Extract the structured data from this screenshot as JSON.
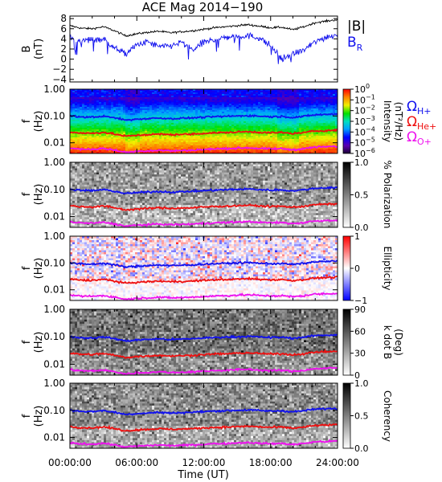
{
  "title": "ACE Mag 2014−190",
  "xlabel": "Time (UT)",
  "x_ticks": [
    "00:00:00",
    "06:00:00",
    "12:00:00",
    "18:00:00",
    "24:00:00"
  ],
  "colors": {
    "bmag": "#000000",
    "br": "#1010ee",
    "h_line": "#1010ee",
    "he_line": "#ee0f0f",
    "o_line": "#ee10ee"
  },
  "chart_data": [
    {
      "type": "line",
      "panel": "magnetic field",
      "ylabel": "B",
      "yunit": "(nT)",
      "ylim": [
        -4.5,
        8.5
      ],
      "y_ticks": [
        "8",
        "6",
        "4",
        "2",
        "0",
        "−2",
        "−4"
      ],
      "y_tick_values": [
        8,
        6,
        4,
        2,
        0,
        -2,
        -4
      ],
      "x_hours": [
        0,
        1,
        2,
        3,
        4,
        5,
        6,
        7,
        8,
        9,
        10,
        11,
        12,
        13,
        14,
        15,
        16,
        17,
        18,
        19,
        20,
        21,
        22,
        23,
        24
      ],
      "series": [
        {
          "name": "|B|",
          "values": [
            6.6,
            6.1,
            6.0,
            6.4,
            5.6,
            4.6,
            5.0,
            5.3,
            5.5,
            5.2,
            5.4,
            5.6,
            5.9,
            6.2,
            6.4,
            6.6,
            6.8,
            6.5,
            6.2,
            6.3,
            5.8,
            6.4,
            7.2,
            7.5,
            7.8
          ]
        },
        {
          "name": "B",
          "subscript": "R",
          "values": [
            4.2,
            3.6,
            3.9,
            4.0,
            2.2,
            1.0,
            2.8,
            3.4,
            2.4,
            2.6,
            3.3,
            1.8,
            3.3,
            3.9,
            4.3,
            4.5,
            4.6,
            4.2,
            2.6,
            0.0,
            1.0,
            1.8,
            3.4,
            4.4,
            4.8
          ]
        }
      ]
    },
    {
      "type": "heatmap",
      "panel": "intensity spectrogram",
      "ylabel": "f",
      "yunit": "(Hz)",
      "y_scale": "log",
      "ylim": [
        0.004,
        1.0
      ],
      "y_ticks": [
        "1.00",
        "0.10",
        "0.01"
      ],
      "colorbar_label": "Intensity",
      "colorbar_unit": "(nT²/Hz)",
      "colorbar_scale": "log",
      "colorbar_ticks": [
        "10",
        "10",
        "10",
        "10",
        "10",
        "10",
        "10"
      ],
      "colorbar_tick_exponents": [
        "0",
        "−1",
        "−2",
        "−3",
        "−4",
        "−5",
        "−6"
      ],
      "colorbar_range": [
        1e-06,
        1
      ],
      "colormap": "rainbow",
      "legend": [
        {
          "symbol": "Ω",
          "sub": "H+",
          "color": "#1010ee"
        },
        {
          "symbol": "Ω",
          "sub": "He+",
          "color": "#ee0f0f"
        },
        {
          "symbol": "Ω",
          "sub": "O+",
          "color": "#ee10ee"
        }
      ]
    },
    {
      "type": "heatmap",
      "panel": "polarization",
      "ylabel": "f",
      "yunit": "(Hz)",
      "y_scale": "log",
      "ylim": [
        0.004,
        1.0
      ],
      "y_ticks": [
        "1.00",
        "0.10",
        "0.01"
      ],
      "colorbar_label": "% Polarization",
      "colorbar_range": [
        0,
        1
      ],
      "colorbar_ticks": [
        "1.0",
        "0.5",
        "0.0"
      ],
      "colormap": "gray"
    },
    {
      "type": "heatmap",
      "panel": "ellipticity",
      "ylabel": "f",
      "yunit": "(Hz)",
      "y_scale": "log",
      "ylim": [
        0.004,
        1.0
      ],
      "y_ticks": [
        "1.00",
        "0.10",
        "0.01"
      ],
      "colorbar_label": "Ellipticity",
      "colorbar_range": [
        -1,
        1
      ],
      "colorbar_ticks": [
        "1",
        "0",
        "−1"
      ],
      "colormap": "blue-white-red"
    },
    {
      "type": "heatmap",
      "panel": "wave normal angle",
      "ylabel": "f",
      "yunit": "(Hz)",
      "y_scale": "log",
      "ylim": [
        0.004,
        1.0
      ],
      "y_ticks": [
        "1.00",
        "0.10",
        "0.01"
      ],
      "colorbar_label": "k dot B",
      "colorbar_unit": "(Deg)",
      "colorbar_range": [
        0,
        90
      ],
      "colorbar_ticks": [
        "90",
        "60",
        "30",
        "0"
      ],
      "colormap": "gray"
    },
    {
      "type": "heatmap",
      "panel": "coherency",
      "ylabel": "f",
      "yunit": "(Hz)",
      "y_scale": "log",
      "ylim": [
        0.004,
        1.0
      ],
      "y_ticks": [
        "1.00",
        "0.10",
        "0.01"
      ],
      "colorbar_label": "Coherency",
      "colorbar_range": [
        0,
        1
      ],
      "colorbar_ticks": [
        "1.0",
        "0.5",
        "0.0"
      ],
      "colormap": "gray"
    }
  ],
  "gyrofrequency_lines": {
    "x_hours": [
      0,
      1,
      2,
      3,
      4,
      5,
      6,
      7,
      8,
      9,
      10,
      11,
      12,
      13,
      14,
      15,
      16,
      17,
      18,
      19,
      20,
      21,
      22,
      23,
      24
    ],
    "H+": [
      0.1,
      0.092,
      0.09,
      0.098,
      0.085,
      0.07,
      0.076,
      0.08,
      0.084,
      0.079,
      0.082,
      0.085,
      0.09,
      0.094,
      0.097,
      0.1,
      0.103,
      0.098,
      0.094,
      0.096,
      0.088,
      0.097,
      0.11,
      0.114,
      0.118
    ],
    "He+": [
      0.025,
      0.023,
      0.0225,
      0.0245,
      0.021,
      0.0175,
      0.019,
      0.02,
      0.021,
      0.02,
      0.0205,
      0.021,
      0.0225,
      0.0235,
      0.024,
      0.025,
      0.026,
      0.0245,
      0.0235,
      0.024,
      0.022,
      0.024,
      0.0275,
      0.0285,
      0.0295
    ],
    "O+": [
      0.0063,
      0.0058,
      0.0057,
      0.0061,
      0.0053,
      0.0044,
      0.0048,
      0.005,
      0.0053,
      0.005,
      0.0051,
      0.0053,
      0.0056,
      0.0059,
      0.006,
      0.0063,
      0.0065,
      0.0061,
      0.0059,
      0.006,
      0.0055,
      0.006,
      0.0069,
      0.0071,
      0.0074
    ]
  }
}
